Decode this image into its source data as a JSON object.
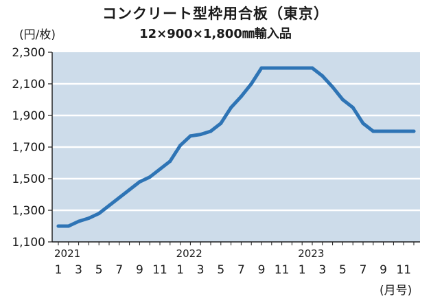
{
  "chart_data": {
    "type": "line",
    "title": "コンクリート型枠用合板（東京）",
    "subtitle": "12×900×1,800㎜輸入品",
    "ylabel": "(円/枚)",
    "xlabel": "(月号)",
    "ylim": [
      1100,
      2300
    ],
    "yticks": [
      "1,100",
      "1,300",
      "1,500",
      "1,700",
      "1,900",
      "2,100",
      "2,300"
    ],
    "years": [
      {
        "label": "2021",
        "month_index": 0
      },
      {
        "label": "2022",
        "month_index": 12
      },
      {
        "label": "2023",
        "month_index": 24
      }
    ],
    "xtick_labels": [
      "1",
      "3",
      "5",
      "7",
      "9",
      "11",
      "1",
      "3",
      "5",
      "7",
      "9",
      "11",
      "1",
      "3",
      "5",
      "7",
      "9",
      "11"
    ],
    "xtick_month_index": [
      0,
      2,
      4,
      6,
      8,
      10,
      12,
      14,
      16,
      18,
      20,
      22,
      24,
      26,
      28,
      30,
      32,
      34
    ],
    "grid": true,
    "colors": {
      "background": "#cddcea",
      "line": "#2e74b5",
      "grid": "#ffffff"
    },
    "series": [
      {
        "month_index": [
          0,
          1,
          2,
          3,
          4,
          5,
          6,
          7,
          8,
          9,
          10,
          11,
          12,
          13,
          14,
          15,
          16,
          17,
          18,
          19,
          20,
          21,
          22,
          23,
          24,
          25,
          26,
          27,
          28,
          29,
          30,
          31,
          32,
          33,
          34,
          35
        ],
        "values": [
          1200,
          1200,
          1230,
          1250,
          1280,
          1330,
          1380,
          1430,
          1480,
          1510,
          1560,
          1610,
          1710,
          1770,
          1780,
          1800,
          1850,
          1950,
          2020,
          2100,
          2200,
          2200,
          2200,
          2200,
          2200,
          2200,
          2150,
          2080,
          2000,
          1950,
          1850,
          1800,
          1800,
          1800,
          1800,
          1800
        ]
      }
    ]
  }
}
